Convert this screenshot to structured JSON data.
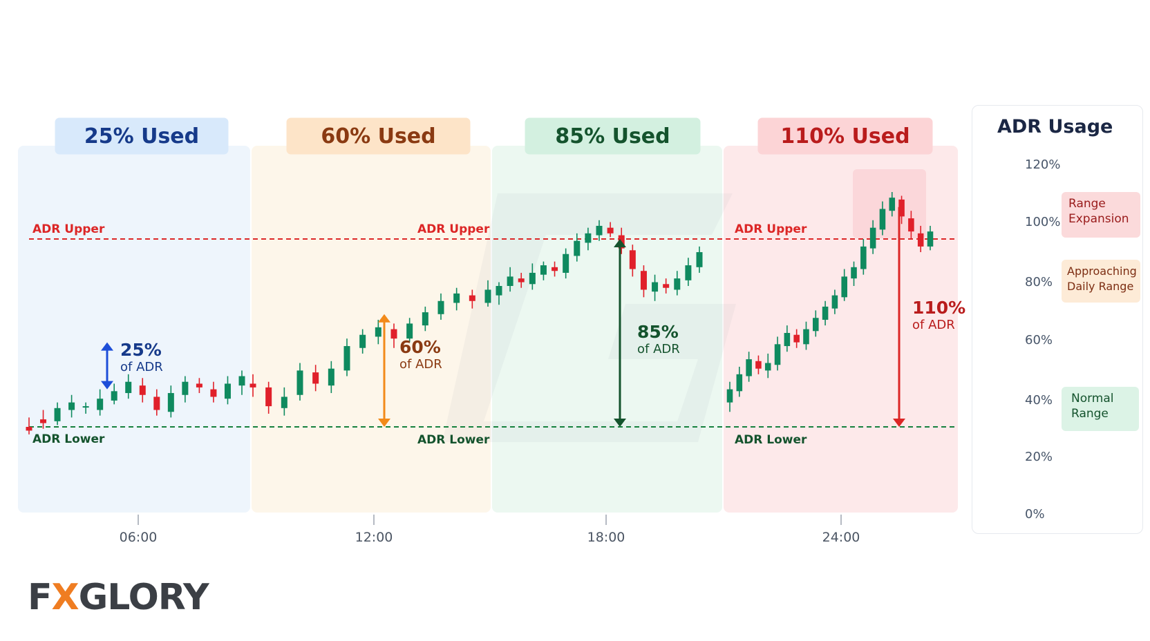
{
  "chart_data": {
    "type": "candlestick",
    "title": "",
    "y_unit": "% of ADR",
    "ylim": [
      -20,
      130
    ],
    "x_ticks": [
      "06:00",
      "12:00",
      "18:00",
      "24:00"
    ],
    "reference_lines": [
      {
        "name": "ADR Upper",
        "value": 100,
        "color": "#dc2626"
      },
      {
        "name": "ADR Lower",
        "value": 0,
        "color": "#15803d"
      }
    ],
    "phases": [
      {
        "label": "25% Used",
        "annotation_pct": "25%",
        "annotation_sub": "of ADR",
        "arrow_from": 20,
        "arrow_to": 45,
        "bg": "#eef5fc",
        "label_bg": "#d8e9fb",
        "label_color": "#163a8a",
        "accent": "#1d4ed8",
        "candles": [
          [
            0,
            -2,
            5,
            -4
          ],
          [
            4,
            2,
            9,
            -1
          ],
          [
            3,
            10,
            13,
            1
          ],
          [
            9,
            13,
            17,
            5
          ],
          [
            11,
            11,
            13,
            7
          ],
          [
            9,
            15,
            20,
            6
          ],
          [
            14,
            19,
            23,
            12
          ],
          [
            18,
            24,
            28,
            15
          ],
          [
            22,
            17,
            26,
            13
          ],
          [
            16,
            9,
            20,
            6
          ],
          [
            8,
            18,
            22,
            5
          ],
          [
            17,
            24,
            27,
            13
          ],
          [
            23,
            21,
            26,
            18
          ],
          [
            20,
            16,
            24,
            13
          ],
          [
            15,
            23,
            27,
            12
          ],
          [
            22,
            27,
            30,
            17
          ]
        ]
      },
      {
        "label": "60% Used",
        "annotation_pct": "60%",
        "annotation_sub": "of ADR",
        "arrow_from": 0,
        "arrow_to": 60,
        "bg": "#fdf6ea",
        "label_bg": "#fde4c8",
        "label_color": "#8a3a12",
        "accent": "#f28a1a",
        "candles": [
          [
            23,
            21,
            28,
            16
          ],
          [
            21,
            11,
            24,
            7
          ],
          [
            10,
            16,
            21,
            6
          ],
          [
            17,
            30,
            34,
            14
          ],
          [
            29,
            23,
            33,
            19
          ],
          [
            22,
            31,
            35,
            18
          ],
          [
            30,
            43,
            47,
            27
          ],
          [
            42,
            49,
            52,
            39
          ],
          [
            48,
            53,
            57,
            44
          ],
          [
            52,
            47,
            55,
            42
          ],
          [
            47,
            55,
            58,
            45
          ],
          [
            54,
            61,
            64,
            51
          ],
          [
            60,
            67,
            71,
            57
          ],
          [
            66,
            71,
            74,
            62
          ],
          [
            70,
            67,
            73,
            63
          ],
          [
            66,
            73,
            78,
            64
          ]
        ]
      },
      {
        "label": "85% Used",
        "annotation_pct": "85%",
        "annotation_sub": "of ADR",
        "arrow_from": 0,
        "arrow_to": 100,
        "bg": "#ecf8f1",
        "label_bg": "#d3f0e0",
        "label_color": "#14532d",
        "accent": "#14532d",
        "candles": [
          [
            70,
            75,
            77,
            65
          ],
          [
            75,
            80,
            85,
            72
          ],
          [
            79,
            77,
            82,
            74
          ],
          [
            76,
            82,
            87,
            73
          ],
          [
            81,
            86,
            88,
            78
          ],
          [
            85,
            83,
            88,
            80
          ],
          [
            82,
            92,
            95,
            79
          ],
          [
            91,
            99,
            103,
            88
          ],
          [
            98,
            103,
            106,
            94
          ],
          [
            102,
            107,
            110,
            99
          ],
          [
            106,
            103,
            109,
            101
          ],
          [
            102,
            95,
            106,
            92
          ],
          [
            94,
            84,
            97,
            80
          ],
          [
            83,
            73,
            86,
            69
          ],
          [
            72,
            77,
            81,
            67
          ],
          [
            76,
            74,
            79,
            71
          ],
          [
            73,
            79,
            83,
            70
          ],
          [
            78,
            86,
            90,
            75
          ],
          [
            85,
            93,
            96,
            82
          ]
        ]
      },
      {
        "label": "110% Used",
        "annotation_pct": "110%",
        "annotation_sub": "of ADR",
        "arrow_from": 117,
        "arrow_to": 0,
        "bg": "#fde9ea",
        "label_bg": "#fcd4d6",
        "label_color": "#b91c1c",
        "accent": "#dc2626",
        "candles": [
          [
            13,
            20,
            24,
            8
          ],
          [
            19,
            28,
            32,
            16
          ],
          [
            27,
            36,
            40,
            24
          ],
          [
            35,
            31,
            38,
            28
          ],
          [
            30,
            34,
            39,
            26
          ],
          [
            33,
            44,
            48,
            30
          ],
          [
            43,
            50,
            54,
            40
          ],
          [
            49,
            45,
            52,
            42
          ],
          [
            44,
            52,
            56,
            41
          ],
          [
            51,
            58,
            62,
            48
          ],
          [
            57,
            64,
            67,
            54
          ],
          [
            63,
            70,
            73,
            60
          ],
          [
            69,
            80,
            84,
            67
          ],
          [
            79,
            85,
            88,
            75
          ],
          [
            84,
            96,
            100,
            81
          ],
          [
            95,
            106,
            110,
            92
          ],
          [
            105,
            116,
            120,
            102
          ],
          [
            115,
            122,
            125,
            112
          ],
          [
            121,
            112,
            123,
            108
          ],
          [
            111,
            104,
            115,
            100
          ],
          [
            103,
            96,
            107,
            93
          ],
          [
            96,
            104,
            107,
            94
          ]
        ]
      }
    ]
  },
  "legend": {
    "title": "ADR Usage",
    "ticks": [
      "0%",
      "20%",
      "40%",
      "60%",
      "80%",
      "100%",
      "120%"
    ],
    "marker_value": 100,
    "zones": [
      {
        "label_line1": "Range",
        "label_line2": "Expansion",
        "bg": "#fbdadb",
        "color": "#991b1b"
      },
      {
        "label_line1": "Approaching",
        "label_line2": "Daily Range",
        "bg": "#fdebd7",
        "color": "#7c2d12"
      },
      {
        "label_line1": "Normal",
        "label_line2": "Range",
        "bg": "#dcf3e6",
        "color": "#14532d"
      }
    ]
  },
  "brand": {
    "pre": "F",
    "x": "X",
    "post": "GLORY"
  }
}
